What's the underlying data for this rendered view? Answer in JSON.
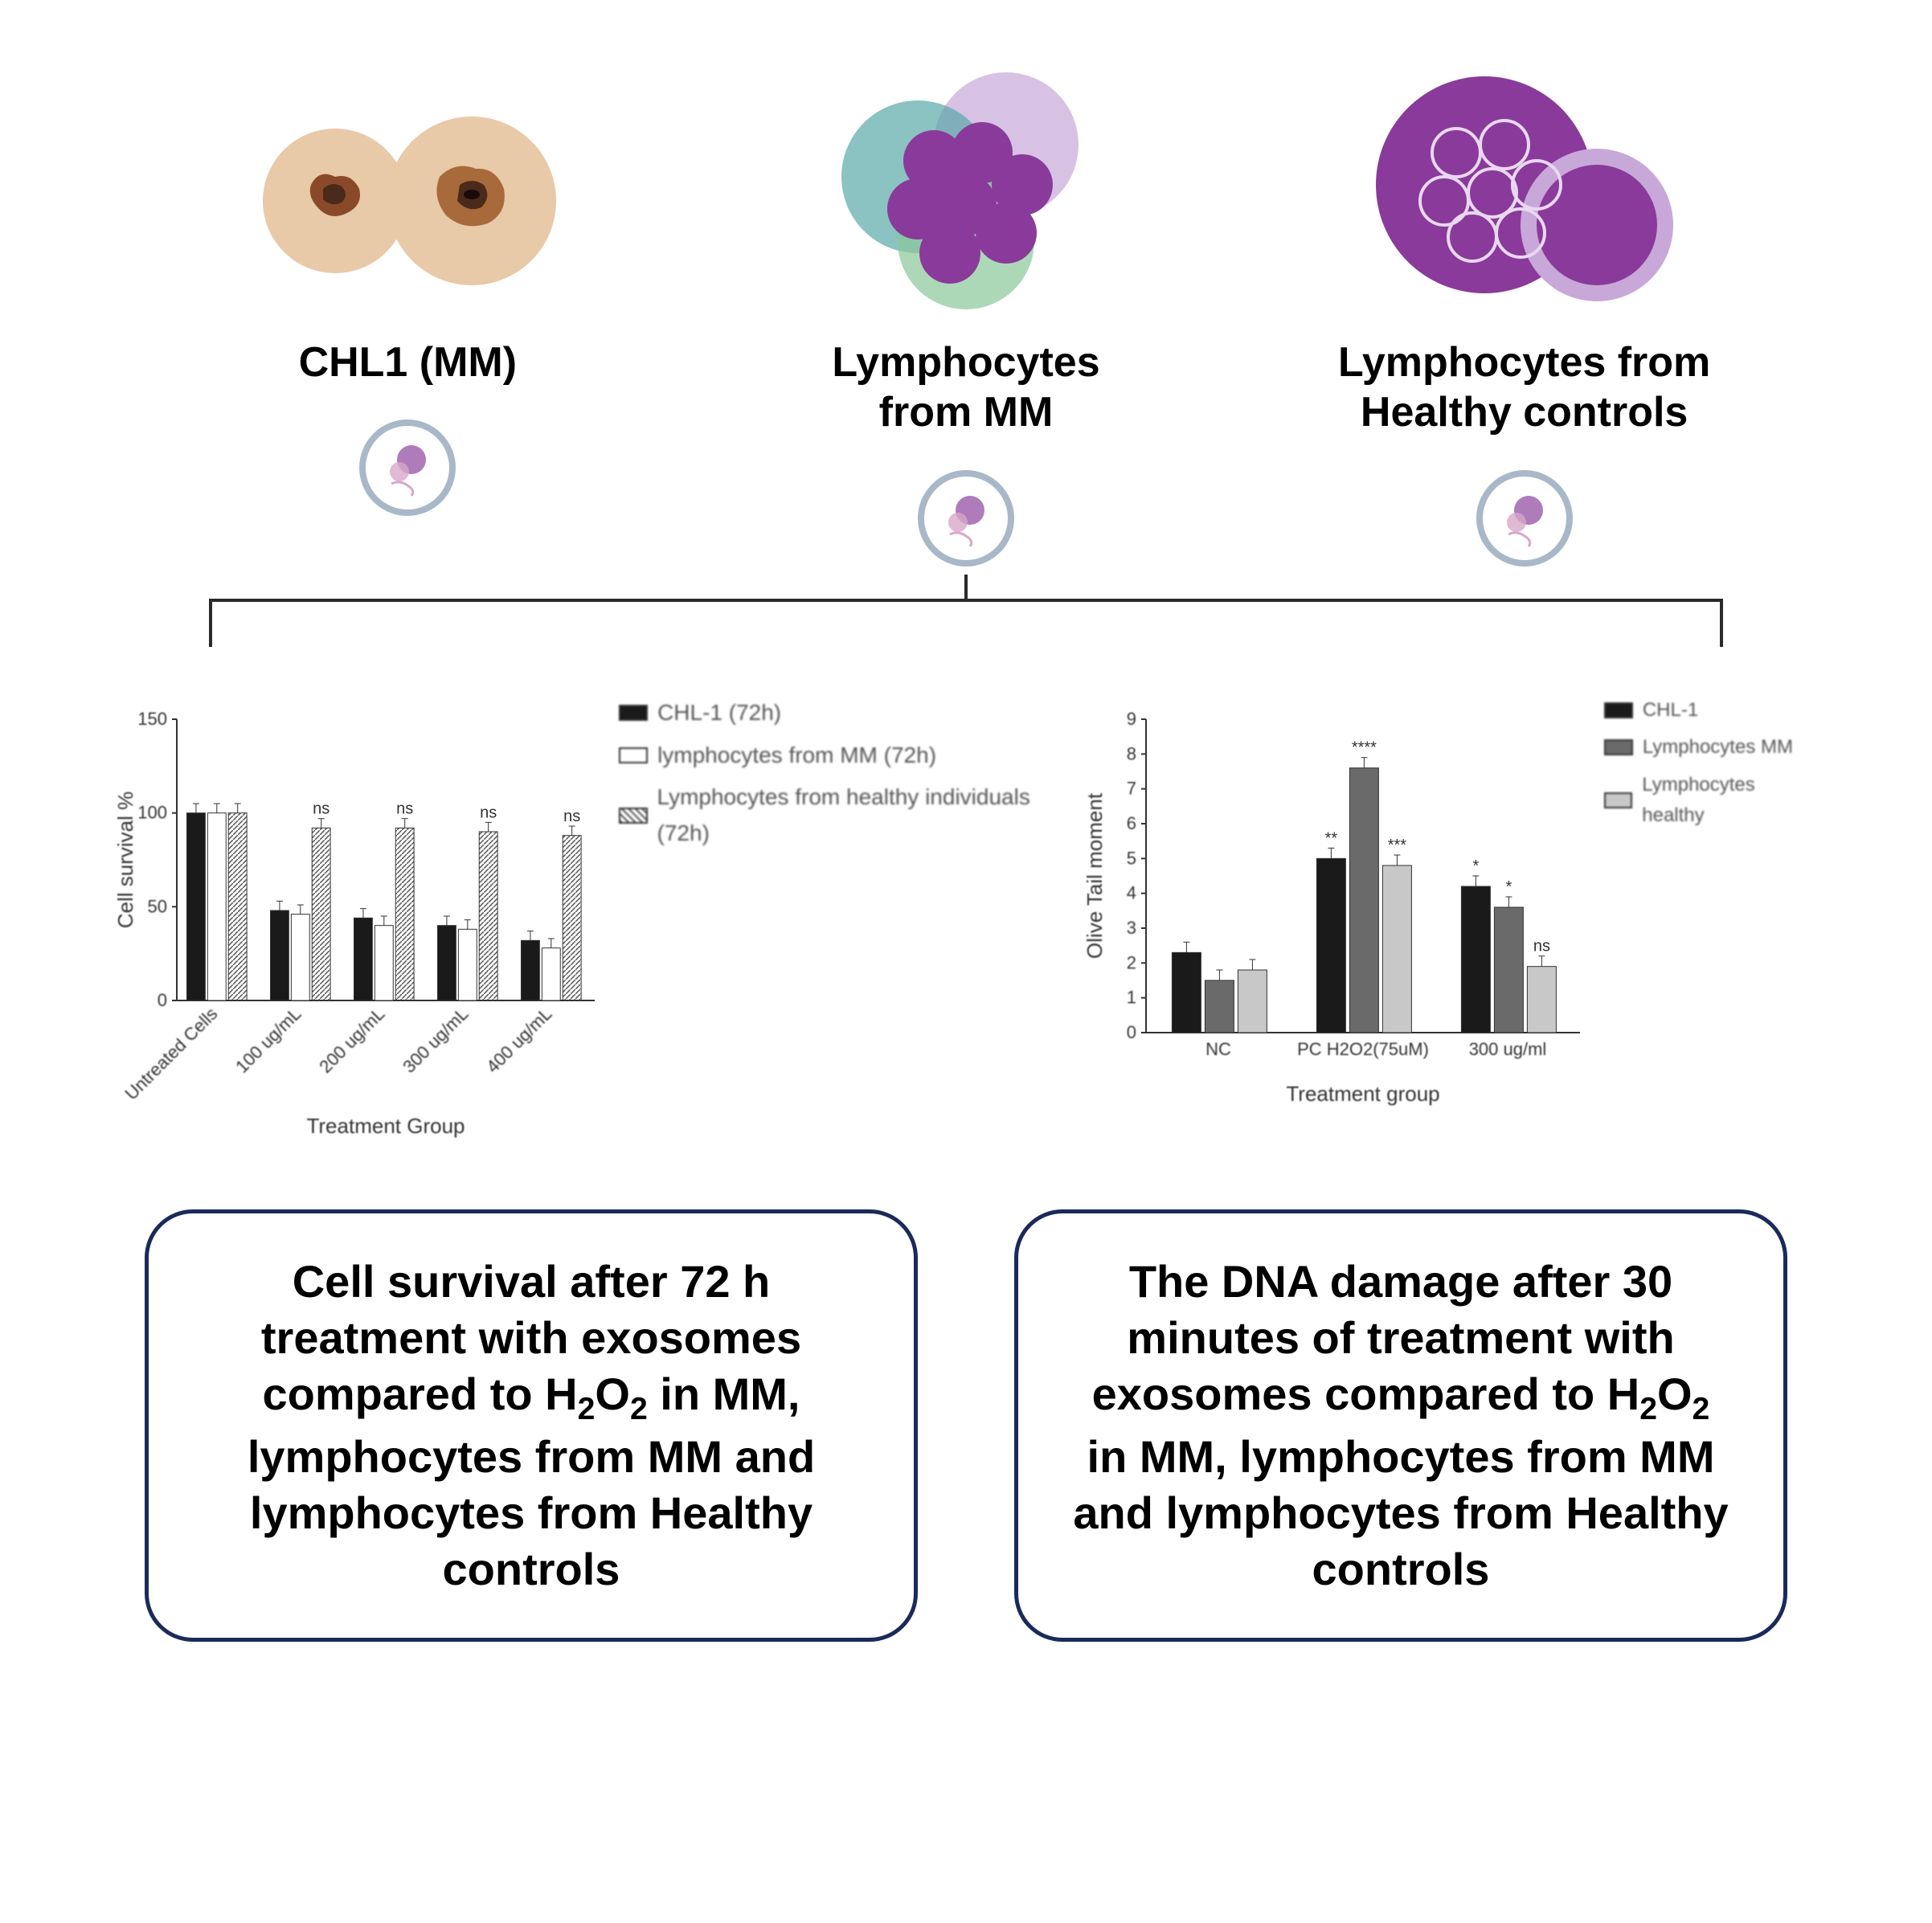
{
  "top": {
    "groups": [
      {
        "label": "CHL1 (MM)"
      },
      {
        "label": "Lymphocytes\nfrom MM"
      },
      {
        "label": "Lymphocytes from\nHealthy controls"
      }
    ]
  },
  "colors": {
    "melanoma_skin": "#e8c9a8",
    "lesion_dark": "#4a2a1a",
    "lesion_mid": "#8a4a2a",
    "lymphocyte_purple": "#8a3a9a",
    "lymphocyte_light": "#c8a8d8",
    "lymphocyte_teal": "#5aa8a8",
    "lymphocyte_green": "#8ac89a",
    "icon_border": "#a8b8c8",
    "icon_pink": "#d8a8c8",
    "icon_purple": "#9a5aaa",
    "bracket": "#2a2a2a",
    "box_border": "#1a2a5a"
  },
  "chart1": {
    "type": "bar",
    "title": "",
    "ylabel": "Cell survival %",
    "xlabel": "Treatment Group",
    "ylim": [
      0,
      150
    ],
    "yticks": [
      0,
      50,
      100,
      150
    ],
    "categories": [
      "Untreated Cells",
      "100 ug/mL",
      "200 ug/mL",
      "300 ug/mL",
      "400 ug/mL"
    ],
    "series": [
      {
        "name": "CHL-1 (72h)",
        "color": "#1a1a1a",
        "pattern": "solid",
        "values": [
          100,
          48,
          44,
          40,
          32
        ]
      },
      {
        "name": "lymphocytes from MM (72h)",
        "color": "#ffffff",
        "pattern": "outline",
        "values": [
          100,
          46,
          40,
          38,
          28
        ]
      },
      {
        "name": "Lymphocytes from healthy individuals (72h)",
        "color": "#888888",
        "pattern": "hatch",
        "values": [
          100,
          92,
          92,
          90,
          88
        ]
      }
    ],
    "sig_markers": {
      "1": [
        "",
        "",
        "ns"
      ],
      "2": [
        "",
        "",
        "ns"
      ],
      "3": [
        "",
        "",
        "ns"
      ],
      "4": [
        "",
        "",
        "ns"
      ]
    },
    "error_bar": 5,
    "font_size_label": 26,
    "font_size_tick": 22
  },
  "chart2": {
    "type": "bar",
    "title": "",
    "ylabel": "Olive Tail moment",
    "xlabel": "Treatment group",
    "ylim": [
      0,
      9
    ],
    "yticks": [
      0,
      1,
      2,
      3,
      4,
      5,
      6,
      7,
      8,
      9
    ],
    "categories": [
      "NC",
      "PC H2O2(75uM)",
      "300 ug/ml"
    ],
    "series": [
      {
        "name": "CHL-1",
        "color": "#1a1a1a",
        "values": [
          2.3,
          5.0,
          4.2
        ]
      },
      {
        "name": "Lymphocytes MM",
        "color": "#6a6a6a",
        "values": [
          1.5,
          7.6,
          3.6
        ]
      },
      {
        "name": "Lymphocytes healthy",
        "color": "#c8c8c8",
        "values": [
          1.8,
          4.8,
          1.9
        ]
      }
    ],
    "sig_markers": {
      "1": [
        "**",
        "****",
        "***"
      ],
      "2": [
        "*",
        "*",
        "ns"
      ]
    },
    "error_bar": 0.3,
    "font_size_label": 26,
    "font_size_tick": 22
  },
  "captions": [
    "Cell survival after 72 h treatment with exosomes compared to H₂O₂ in MM, lymphocytes from MM and lymphocytes from Healthy controls",
    "The DNA damage after 30 minutes of treatment with exosomes compared to H₂O₂ in MM, lymphocytes from MM and lymphocytes from Healthy controls"
  ]
}
